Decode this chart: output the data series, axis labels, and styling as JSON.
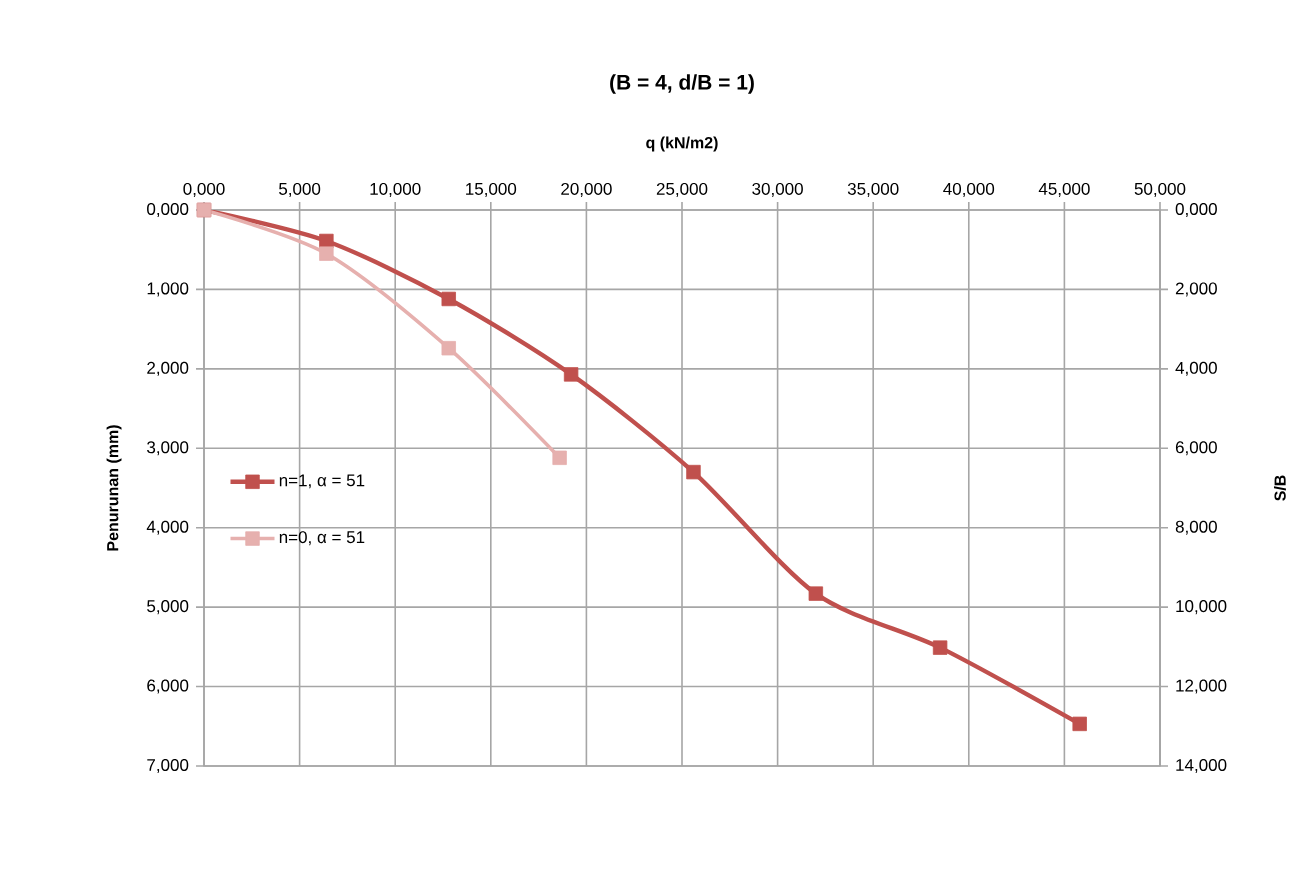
{
  "chart_data": {
    "type": "line",
    "title": "(B = 4, d/B = 1)",
    "xlabel": "q (kN/m2)",
    "ylabel": "Penurunan (mm)",
    "y2label": "S/B",
    "xlim": [
      0,
      50
    ],
    "xticks": [
      {
        "value": 0,
        "label": "0,000"
      },
      {
        "value": 5,
        "label": "5,000"
      },
      {
        "value": 10,
        "label": "10,000"
      },
      {
        "value": 15,
        "label": "15,000"
      },
      {
        "value": 20,
        "label": "20,000"
      },
      {
        "value": 25,
        "label": "25,000"
      },
      {
        "value": 30,
        "label": "30,000"
      },
      {
        "value": 35,
        "label": "35,000"
      },
      {
        "value": 40,
        "label": "40,000"
      },
      {
        "value": 45,
        "label": "45,000"
      },
      {
        "value": 50,
        "label": "50,000"
      }
    ],
    "ylim": [
      7,
      0
    ],
    "yticks": [
      {
        "value": 0,
        "label": "0,000"
      },
      {
        "value": 1,
        "label": "1,000"
      },
      {
        "value": 2,
        "label": "2,000"
      },
      {
        "value": 3,
        "label": "3,000"
      },
      {
        "value": 4,
        "label": "4,000"
      },
      {
        "value": 5,
        "label": "5,000"
      },
      {
        "value": 6,
        "label": "6,000"
      },
      {
        "value": 7,
        "label": "7,000"
      }
    ],
    "y2lim": [
      14,
      0
    ],
    "y2ticks": [
      {
        "value": 0,
        "label": "0,000"
      },
      {
        "value": 2,
        "label": "2,000"
      },
      {
        "value": 4,
        "label": "4,000"
      },
      {
        "value": 6,
        "label": "6,000"
      },
      {
        "value": 8,
        "label": "8,000"
      },
      {
        "value": 10,
        "label": "10,000"
      },
      {
        "value": 12,
        "label": "12,000"
      },
      {
        "value": 14,
        "label": "14,000"
      }
    ],
    "series": [
      {
        "name": "n=1, α = 51",
        "color": "#c0504d",
        "x": [
          0,
          6.4,
          12.8,
          19.2,
          25.6,
          32.0,
          38.5,
          45.8
        ],
        "values": [
          0,
          0.39,
          1.12,
          2.07,
          3.3,
          4.83,
          5.51,
          6.47
        ]
      },
      {
        "name": "n=0, α = 51",
        "color": "#e6b0ae",
        "x": [
          0,
          6.4,
          12.8,
          18.6
        ],
        "values": [
          0,
          0.55,
          1.74,
          3.12
        ]
      }
    ],
    "grid": true,
    "legend": "left",
    "marker": "square",
    "line_style": "solid"
  }
}
